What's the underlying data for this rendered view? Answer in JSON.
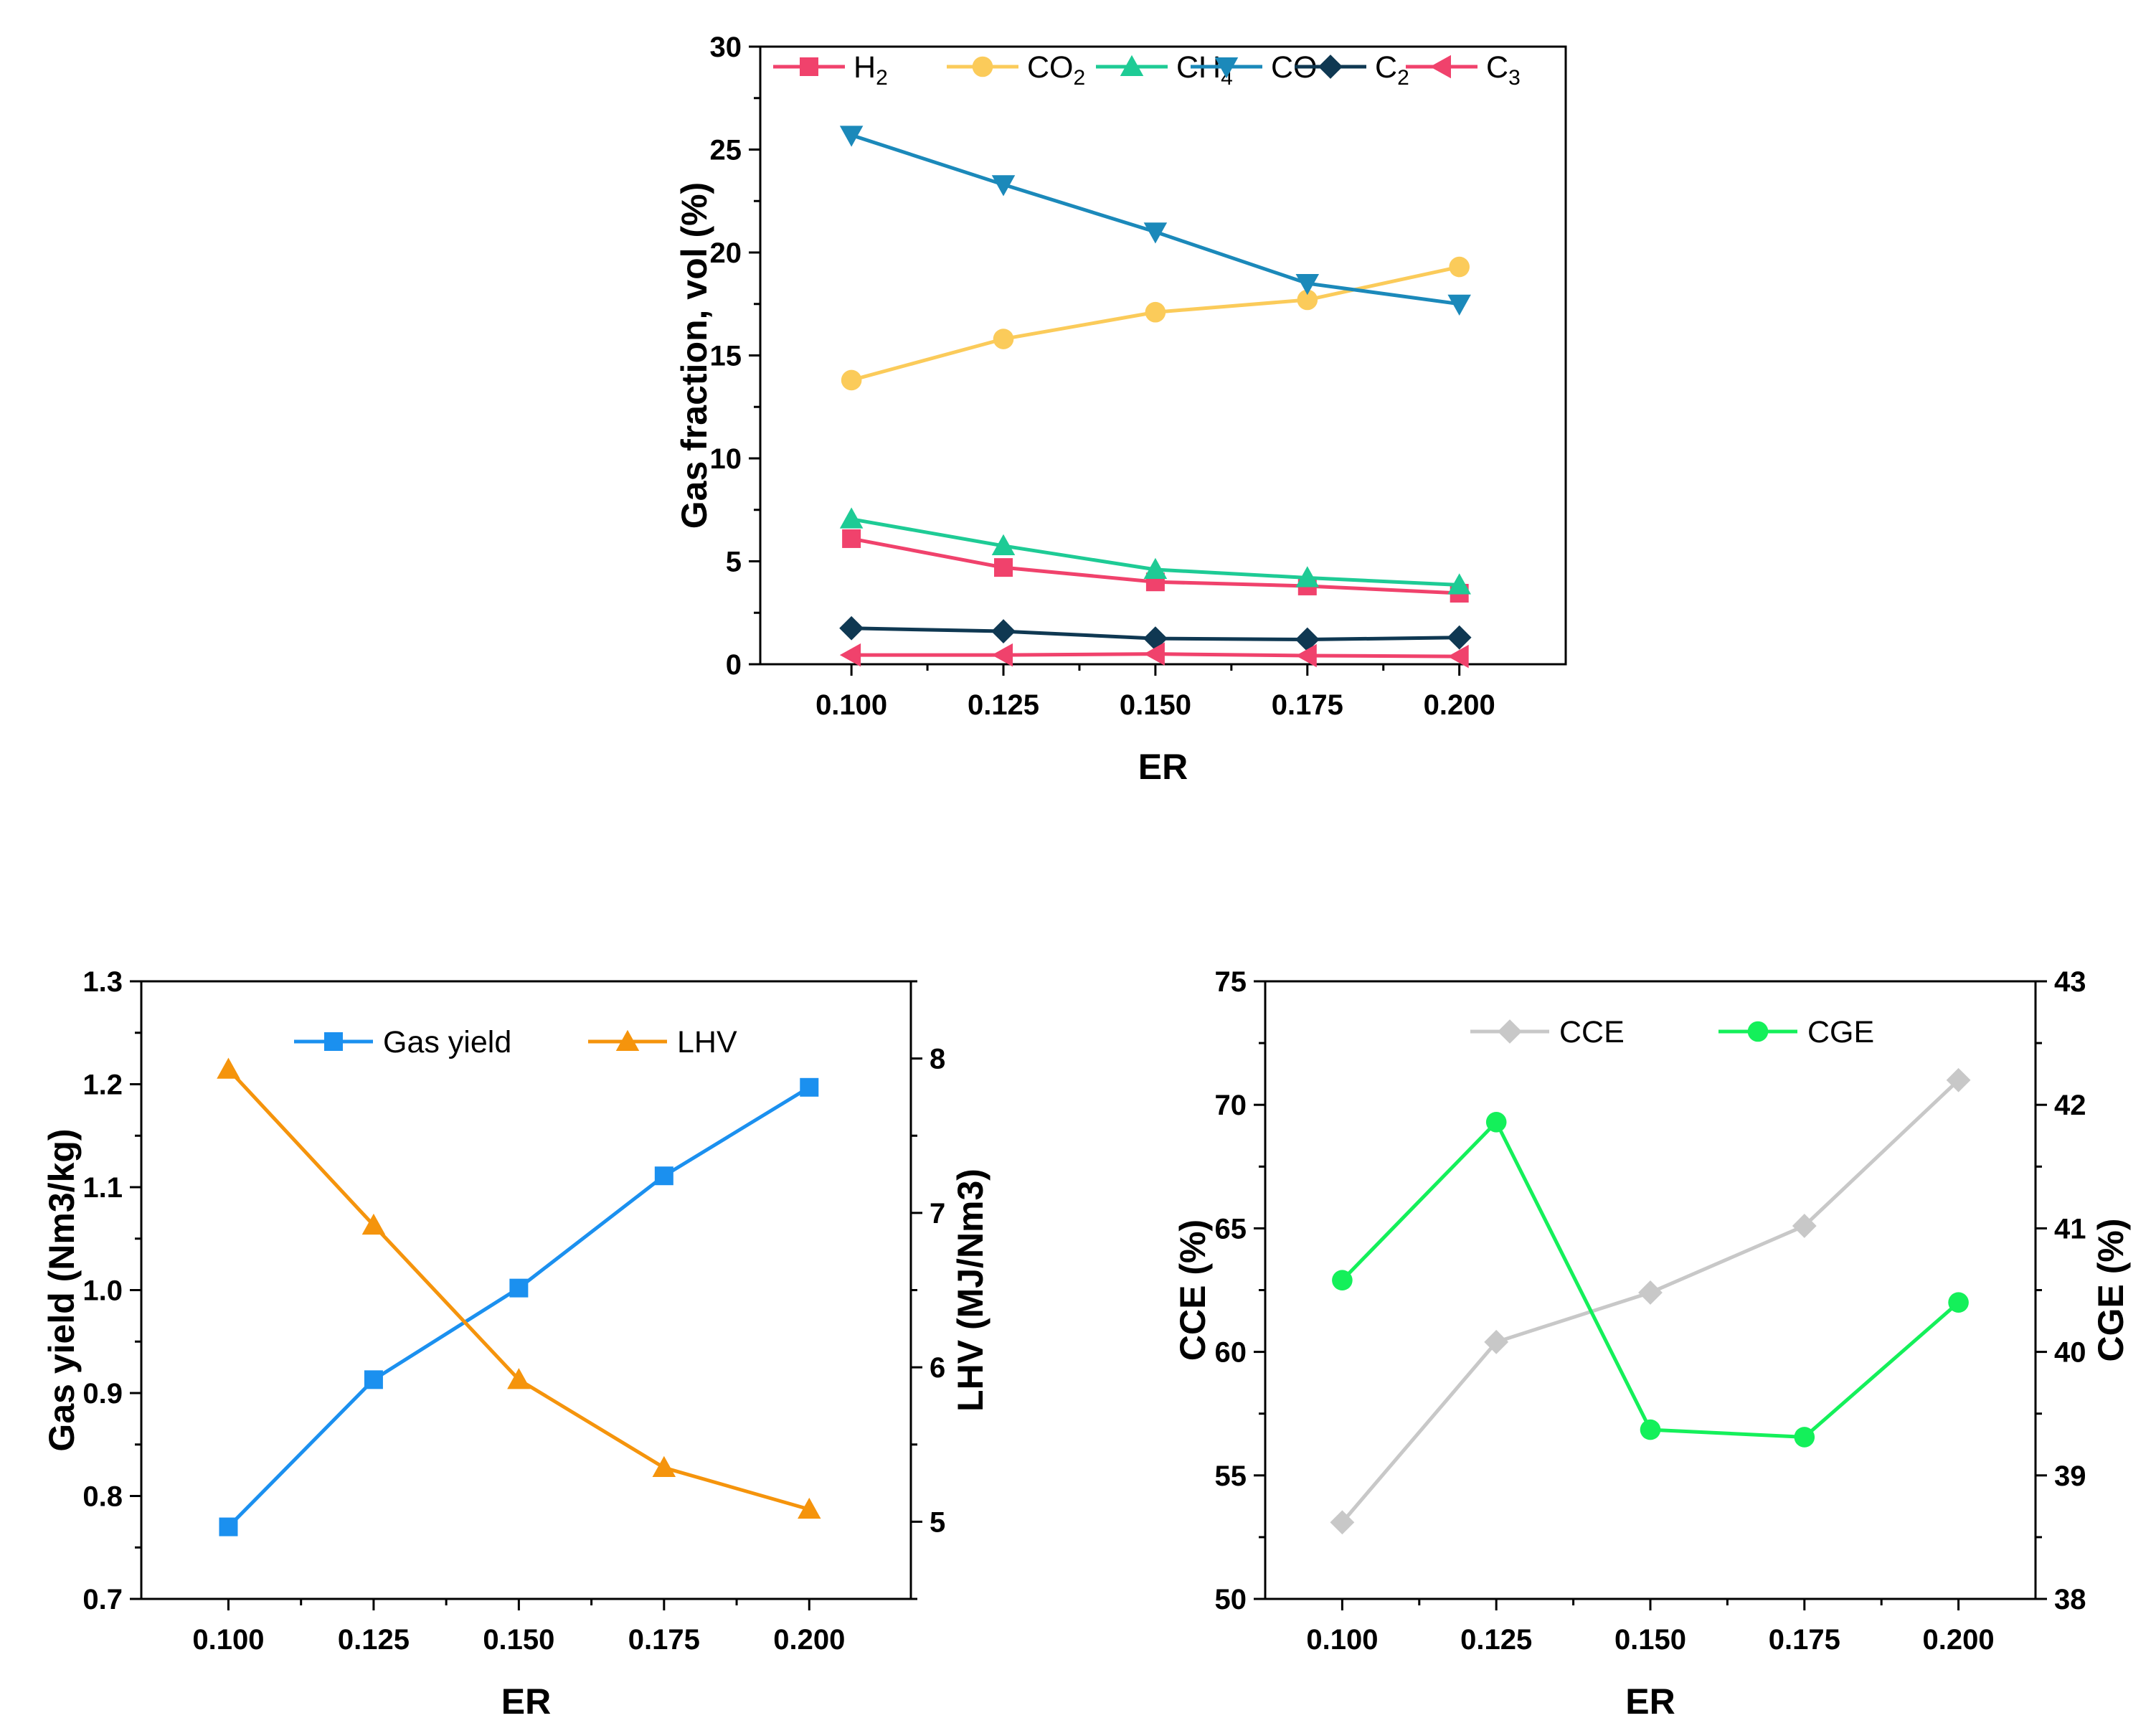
{
  "chart_data": [
    {
      "id": "gas-composition",
      "type": "line",
      "xlabel": "ER",
      "ylabel": "Gas fraction, vol (%)",
      "x": [
        0.1,
        0.125,
        0.15,
        0.175,
        0.2
      ],
      "x_tick_labels": [
        "0.100",
        "0.125",
        "0.150",
        "0.175",
        "0.200"
      ],
      "ylim": [
        0,
        30
      ],
      "y_ticks": [
        "0",
        "5",
        "10",
        "15",
        "20",
        "25",
        "30"
      ],
      "legend_position": "top",
      "series": [
        {
          "name": "H",
          "sub": "2",
          "marker": "square",
          "color": "#f0426c",
          "values": [
            6.1,
            4.7,
            4.0,
            3.8,
            3.45
          ]
        },
        {
          "name": "CO",
          "sub": "2",
          "marker": "circle",
          "color": "#fbcb5a",
          "values": [
            13.8,
            15.8,
            17.1,
            17.7,
            19.3
          ]
        },
        {
          "name": "CH",
          "sub": "4",
          "marker": "triangle-up",
          "color": "#1ecb95",
          "values": [
            7.05,
            5.75,
            4.6,
            4.2,
            3.85
          ]
        },
        {
          "name": "CO",
          "sub": "",
          "marker": "triangle-down",
          "color": "#1b89ba",
          "values": [
            25.7,
            23.3,
            21.0,
            18.5,
            17.5
          ]
        },
        {
          "name": "C",
          "sub": "2",
          "marker": "diamond",
          "color": "#0f3852",
          "values": [
            1.75,
            1.6,
            1.25,
            1.2,
            1.3
          ]
        },
        {
          "name": "C",
          "sub": "3",
          "marker": "triangle-left",
          "color": "#f0426c",
          "values": [
            0.45,
            0.45,
            0.5,
            0.42,
            0.38
          ]
        }
      ]
    },
    {
      "id": "gas-yield-lhv",
      "type": "line",
      "xlabel": "ER",
      "ylabel_left": "Gas yield (Nm3/kg)",
      "ylabel_right": "LHV (MJ/Nm3)",
      "x": [
        0.1,
        0.125,
        0.15,
        0.175,
        0.2
      ],
      "x_tick_labels": [
        "0.100",
        "0.125",
        "0.150",
        "0.175",
        "0.200"
      ],
      "ylim_left": [
        0.7,
        1.3
      ],
      "y_ticks_left": [
        "0.7",
        "0.8",
        "0.9",
        "1.0",
        "1.1",
        "1.2",
        "1.3"
      ],
      "ylim_right": [
        4.5,
        8.5
      ],
      "y_ticks_right": [
        "5",
        "6",
        "7",
        "8"
      ],
      "legend_position": "top",
      "series": [
        {
          "name": "Gas yield",
          "axis": "left",
          "marker": "square",
          "color": "#1b90ef",
          "values": [
            0.77,
            0.913,
            1.002,
            1.111,
            1.197
          ]
        },
        {
          "name": "LHV",
          "axis": "right",
          "marker": "triangle-up",
          "color": "#f5940c",
          "values": [
            7.93,
            6.92,
            5.92,
            5.35,
            5.08
          ]
        }
      ]
    },
    {
      "id": "cce-cge",
      "type": "line",
      "xlabel": "ER",
      "ylabel_left": "CCE (%)",
      "ylabel_right": "CGE (%)",
      "x": [
        0.1,
        0.125,
        0.15,
        0.175,
        0.2
      ],
      "x_tick_labels": [
        "0.100",
        "0.125",
        "0.150",
        "0.175",
        "0.200"
      ],
      "ylim_left": [
        50,
        75
      ],
      "y_ticks_left": [
        "50",
        "55",
        "60",
        "65",
        "70",
        "75"
      ],
      "ylim_right": [
        38,
        43
      ],
      "y_ticks_right": [
        "38",
        "39",
        "40",
        "41",
        "42",
        "43"
      ],
      "legend_position": "top",
      "series": [
        {
          "name": "CCE",
          "axis": "left",
          "marker": "diamond",
          "color": "#c8c8c8",
          "values": [
            53.1,
            60.4,
            62.4,
            65.1,
            71.0
          ]
        },
        {
          "name": "CGE",
          "axis": "right",
          "marker": "circle",
          "color": "#14f05a",
          "values": [
            40.58,
            41.86,
            39.37,
            39.31,
            40.4
          ]
        }
      ]
    }
  ]
}
